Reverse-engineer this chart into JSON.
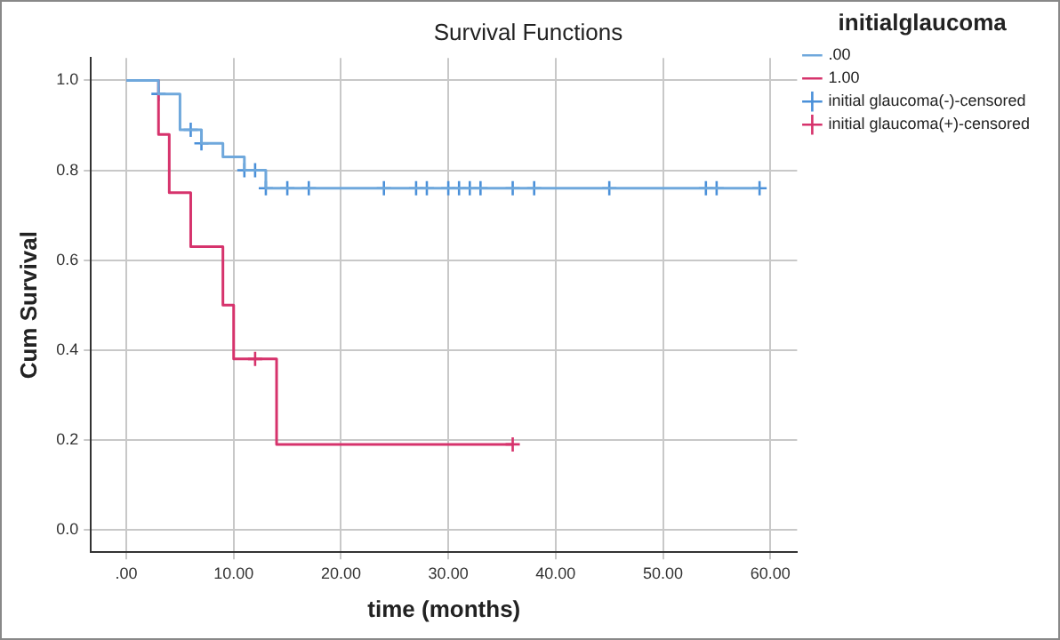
{
  "chart_data": {
    "type": "step",
    "title": "Survival Functions",
    "xlabel": "time (months)",
    "ylabel": "Cum Survival",
    "legend_title": "initialglaucoma",
    "xlim": [
      -3.3,
      62.5
    ],
    "ylim": [
      -0.05,
      1.05
    ],
    "xticks": [
      {
        "value": 0,
        "label": ".00"
      },
      {
        "value": 10,
        "label": "10.00"
      },
      {
        "value": 20,
        "label": "20.00"
      },
      {
        "value": 30,
        "label": "30.00"
      },
      {
        "value": 40,
        "label": "40.00"
      },
      {
        "value": 50,
        "label": "50.00"
      },
      {
        "value": 60,
        "label": "60.00"
      }
    ],
    "yticks": [
      {
        "value": 0,
        "label": "0.0"
      },
      {
        "value": 0.2,
        "label": "0.2"
      },
      {
        "value": 0.4,
        "label": "0.4"
      },
      {
        "value": 0.6,
        "label": "0.6"
      },
      {
        "value": 0.8,
        "label": "0.8"
      },
      {
        "value": 1,
        "label": "1.0"
      }
    ],
    "grid": true,
    "legend": "right",
    "marker": "none",
    "series": [
      {
        "name": ".00",
        "type": "step",
        "color": "#6fa8dc",
        "x": [
          0,
          3,
          5,
          7,
          9,
          11,
          13,
          59
        ],
        "values": [
          1,
          0.97,
          0.89,
          0.86,
          0.83,
          0.8,
          0.76,
          0.76
        ]
      },
      {
        "name": "1.00",
        "type": "step",
        "color": "#d6336c",
        "x": [
          0,
          3,
          4,
          6,
          9,
          10,
          14,
          36
        ],
        "values": [
          1,
          0.88,
          0.75,
          0.63,
          0.5,
          0.38,
          0.19,
          0.19
        ]
      },
      {
        "name": "initial glaucoma(-)-censored",
        "type": "scatter",
        "marker": "cross",
        "color": "#4a90d9",
        "x": [
          3,
          6,
          7,
          11,
          12,
          13,
          15,
          17,
          24,
          27,
          28,
          30,
          31,
          32,
          33,
          36,
          38,
          45,
          54,
          55,
          59
        ],
        "values": [
          0.97,
          0.89,
          0.86,
          0.8,
          0.8,
          0.76,
          0.76,
          0.76,
          0.76,
          0.76,
          0.76,
          0.76,
          0.76,
          0.76,
          0.76,
          0.76,
          0.76,
          0.76,
          0.76,
          0.76,
          0.76
        ]
      },
      {
        "name": "initial glaucoma(+)-censored",
        "type": "scatter",
        "marker": "cross",
        "color": "#d6336c",
        "x": [
          12,
          36
        ],
        "values": [
          0.38,
          0.19
        ]
      }
    ]
  }
}
